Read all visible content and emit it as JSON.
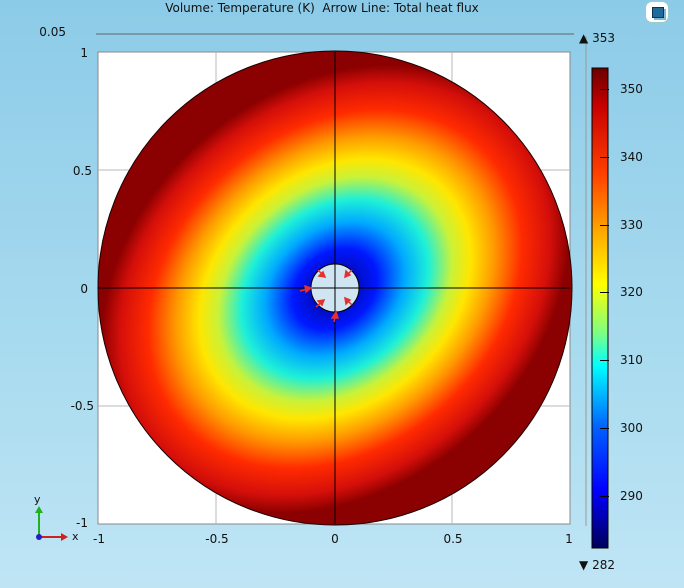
{
  "plot": {
    "title": "Volume: Temperature (K)  Arrow Line: Total heat flux",
    "y_top_overlap_labels": [
      "0.05",
      "1"
    ],
    "y_ticks": [
      "1",
      "0.5",
      "0",
      "-0.5",
      "-1"
    ],
    "x_ticks": [
      "-1",
      "-0.5",
      "0",
      "0.5",
      "1"
    ]
  },
  "colorbar": {
    "max_label": "353",
    "min_label": "282",
    "ticks": [
      "350",
      "340",
      "330",
      "320",
      "310",
      "300",
      "290"
    ],
    "max_symbol": "▲",
    "min_symbol": "▼"
  },
  "axes_indicator": {
    "y": "y",
    "x": "x"
  },
  "colors": {
    "background_top": "#8ccbe8",
    "hot": "#8b0000",
    "cold": "#00007f",
    "arrow": "#e53030"
  },
  "icons": {
    "corner": "window-icon"
  }
}
